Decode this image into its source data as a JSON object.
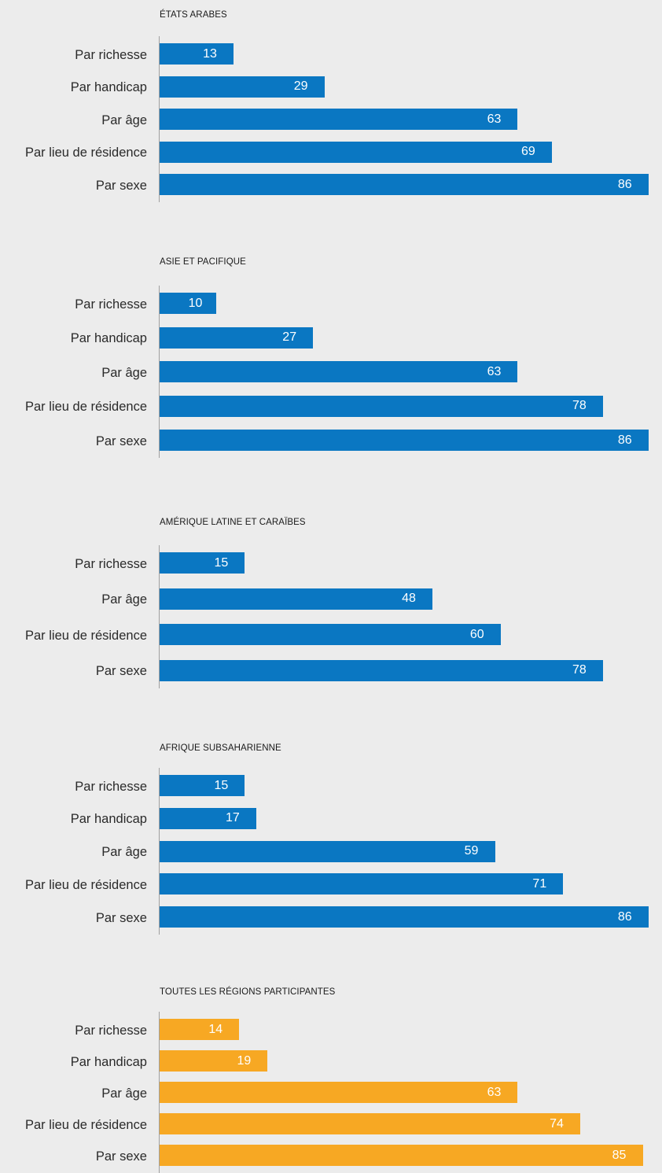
{
  "colors": {
    "background": "#ececec",
    "region_bar": "#0a77c2",
    "total_bar": "#f7a823",
    "value_text": "#ffffff"
  },
  "chart_data": [
    {
      "type": "bar",
      "orientation": "horizontal",
      "title": "ÉTATS ARABES",
      "categories": [
        "Par richesse",
        "Par handicap",
        "Par âge",
        "Par lieu de résidence",
        "Par sexe"
      ],
      "values": [
        13,
        29,
        63,
        69,
        86
      ],
      "color": "#0a77c2",
      "data_labels": [
        "13",
        "29",
        "63",
        "69",
        "86"
      ]
    },
    {
      "type": "bar",
      "orientation": "horizontal",
      "title": "ASIE ET PACIFIQUE",
      "categories": [
        "Par richesse",
        "Par handicap",
        "Par âge",
        "Par lieu de résidence",
        "Par sexe"
      ],
      "values": [
        10,
        27,
        63,
        78,
        86
      ],
      "color": "#0a77c2",
      "data_labels": [
        "10",
        "27",
        "63",
        "78",
        "86"
      ]
    },
    {
      "type": "bar",
      "orientation": "horizontal",
      "title": "AMÉRIQUE LATINE ET CARAÏBES",
      "categories": [
        "Par richesse",
        "Par âge",
        "Par lieu de résidence",
        "Par sexe"
      ],
      "values": [
        15,
        48,
        60,
        78
      ],
      "color": "#0a77c2",
      "data_labels": [
        "15",
        "48",
        "60",
        "78"
      ]
    },
    {
      "type": "bar",
      "orientation": "horizontal",
      "title": "AFRIQUE SUBSAHARIENNE",
      "categories": [
        "Par richesse",
        "Par handicap",
        "Par âge",
        "Par lieu de résidence",
        "Par sexe"
      ],
      "values": [
        15,
        17,
        59,
        71,
        86
      ],
      "color": "#0a77c2",
      "data_labels": [
        "15",
        "17",
        "59",
        "71",
        "86"
      ]
    },
    {
      "type": "bar",
      "orientation": "horizontal",
      "title": "TOUTES LES RÉGIONS PARTICIPANTES",
      "categories": [
        "Par richesse",
        "Par handicap",
        "Par âge",
        "Par lieu de résidence",
        "Par sexe"
      ],
      "values": [
        14,
        19,
        63,
        74,
        85
      ],
      "color": "#f7a823",
      "data_labels": [
        "14",
        "19",
        "63",
        "74",
        "85"
      ]
    }
  ]
}
